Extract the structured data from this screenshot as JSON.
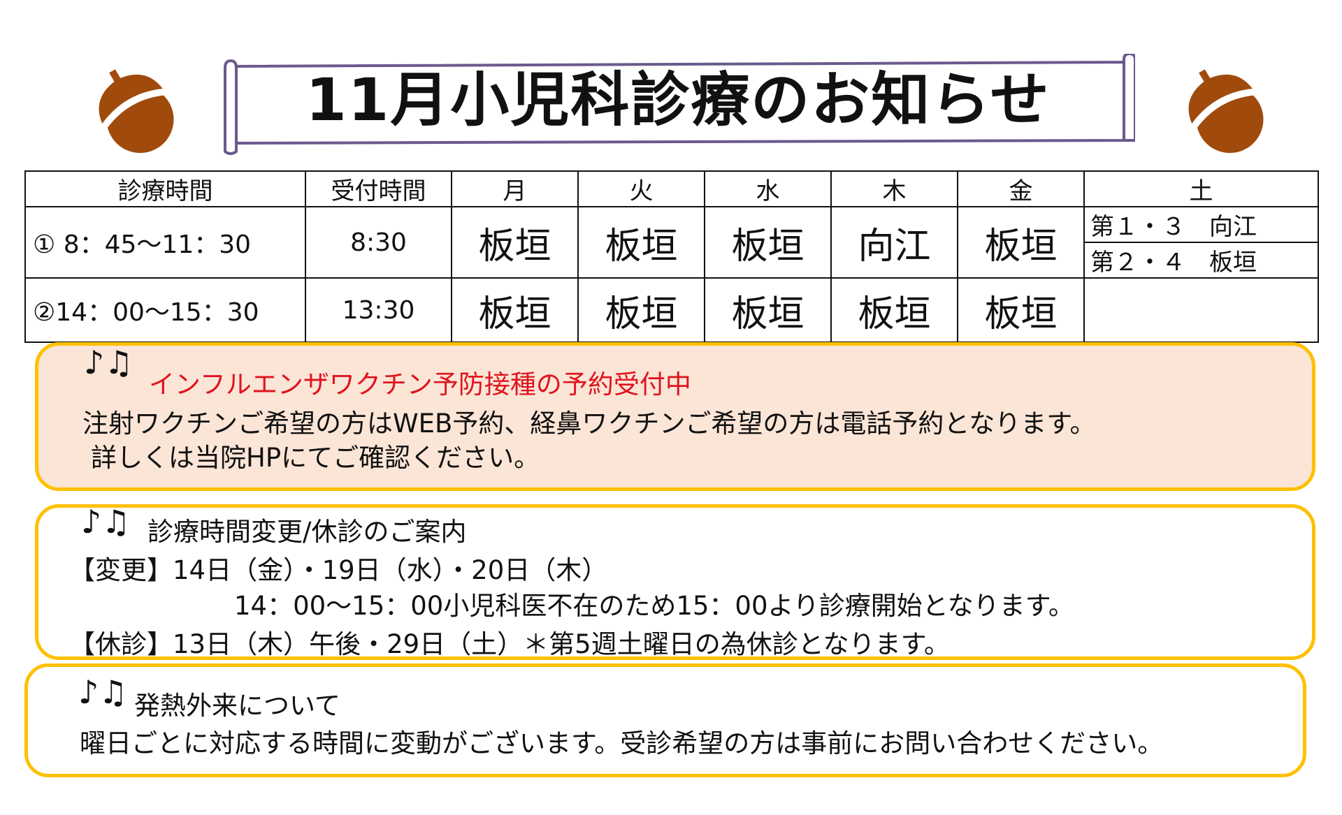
{
  "title": "11月小児科診療のお知らせ",
  "colors": {
    "accent_border": "#ffc000",
    "box1_fill": "#fbe5d6",
    "red_text": "#e0141e",
    "acorn": "#a04a0c",
    "scroll_border": "#6a5a8c"
  },
  "icons": [
    "acorn-icon",
    "music-note-icon"
  ],
  "schedule": {
    "headers": [
      "診療時間",
      "受付時間",
      "月",
      "火",
      "水",
      "木",
      "金",
      "土"
    ],
    "rows": [
      {
        "time": "① 8：45～11：30",
        "reception": "8:30",
        "doctors": [
          "板垣",
          "板垣",
          "板垣",
          "向江",
          "板垣"
        ],
        "saturday": [
          "第１・３　向江",
          "第２・４　板垣"
        ]
      },
      {
        "time": "②14：00～15：30",
        "reception": "13:30",
        "doctors": [
          "板垣",
          "板垣",
          "板垣",
          "板垣",
          "板垣"
        ],
        "saturday": []
      }
    ]
  },
  "notices": [
    {
      "heading": "インフルエンザワクチン予防接種の予約受付中",
      "lines": [
        "注射ワクチンご希望の方はWEB予約、経鼻ワクチンご希望の方は電話予約となります。",
        "詳しくは当院HPにてご確認ください。"
      ]
    },
    {
      "heading": "診療時間変更/休診のご案内",
      "lines": [
        "【変更】14日（金）・19日（水）・20日（木）",
        "14：00～15：00小児科医不在のため15：00より診療開始となります。",
        "【休診】13日（木）午後・29日（土）＊第5週土曜日の為休診となります。"
      ]
    },
    {
      "heading": "発熱外来について",
      "lines": [
        "曜日ごとに対応する時間に変動がございます。受診希望の方は事前にお問い合わせください。"
      ]
    }
  ]
}
